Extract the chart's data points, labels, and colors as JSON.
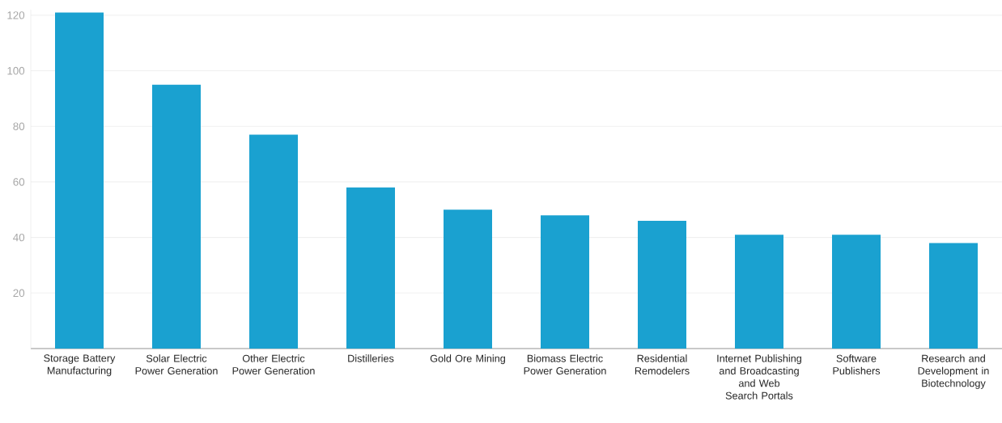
{
  "chart_data": {
    "type": "bar",
    "categories": [
      "Storage Battery Manufacturing",
      "Solar Electric Power Generation",
      "Other Electric Power Generation",
      "Distilleries",
      "Gold Ore Mining",
      "Biomass Electric Power Generation",
      "Residential Remodelers",
      "Internet Publishing and Broadcasting and Web Search Portals",
      "Software Publishers",
      "Research and Development in Biotechnology"
    ],
    "values": [
      121,
      95,
      77,
      58,
      50,
      48,
      46,
      41,
      41,
      38
    ],
    "color": "#1aa1d0",
    "ylim": [
      0,
      122
    ],
    "yticks": [
      20,
      40,
      60,
      80,
      100,
      120
    ],
    "grid": "y"
  }
}
